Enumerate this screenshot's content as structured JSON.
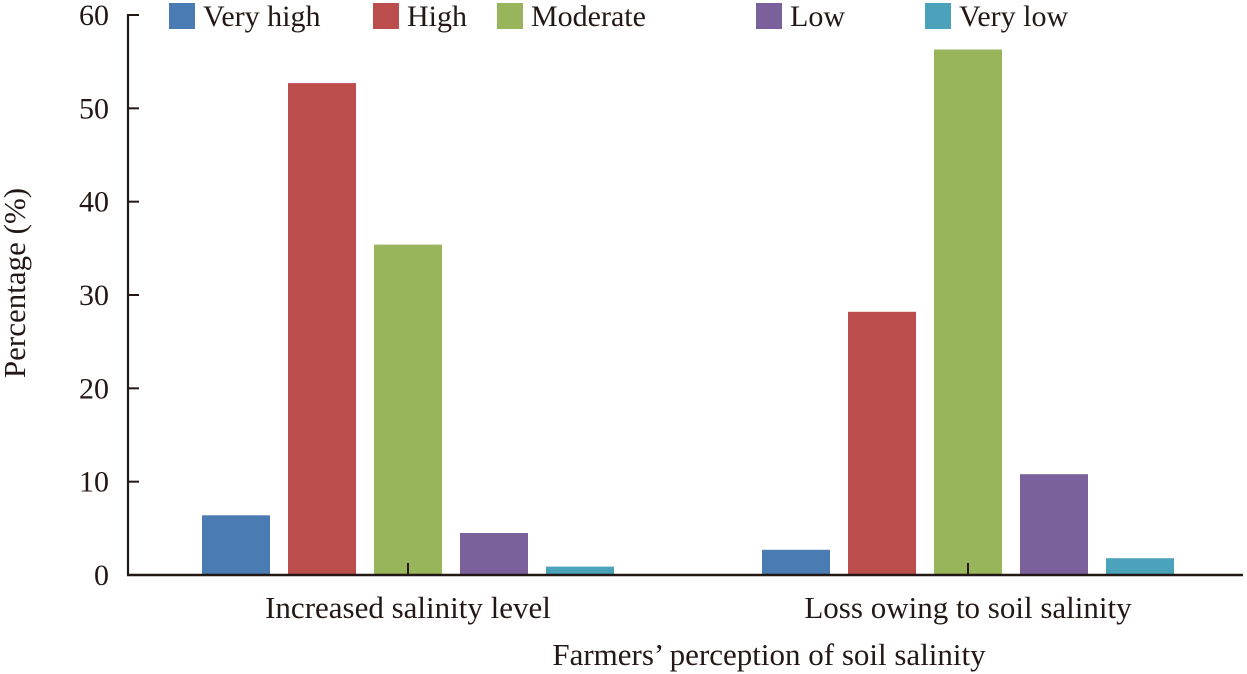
{
  "chart_data": {
    "type": "bar",
    "title": "",
    "xlabel": "Farmers’ perception of soil salinity",
    "ylabel": "Percentage (%)",
    "ylim": [
      0,
      60
    ],
    "yticks": [
      "0",
      "10",
      "20",
      "30",
      "40",
      "50",
      "60"
    ],
    "ytick_values": [
      0,
      10,
      20,
      30,
      40,
      50,
      60
    ],
    "grid": false,
    "legend_position": "top",
    "categories": [
      "Increased salinity level",
      "Loss owing to soil salinity"
    ],
    "series": [
      {
        "name": "Very high",
        "color": "#4a7bb3",
        "values": [
          6.4,
          2.7
        ]
      },
      {
        "name": "High",
        "color": "#bb4e4c",
        "values": [
          52.7,
          28.2
        ]
      },
      {
        "name": "Moderate",
        "color": "#99b55b",
        "values": [
          35.4,
          56.3
        ]
      },
      {
        "name": "Low",
        "color": "#7a619b",
        "values": [
          4.5,
          10.8
        ]
      },
      {
        "name": "Very low",
        "color": "#4aa3bb",
        "values": [
          0.9,
          1.8
        ]
      }
    ]
  }
}
